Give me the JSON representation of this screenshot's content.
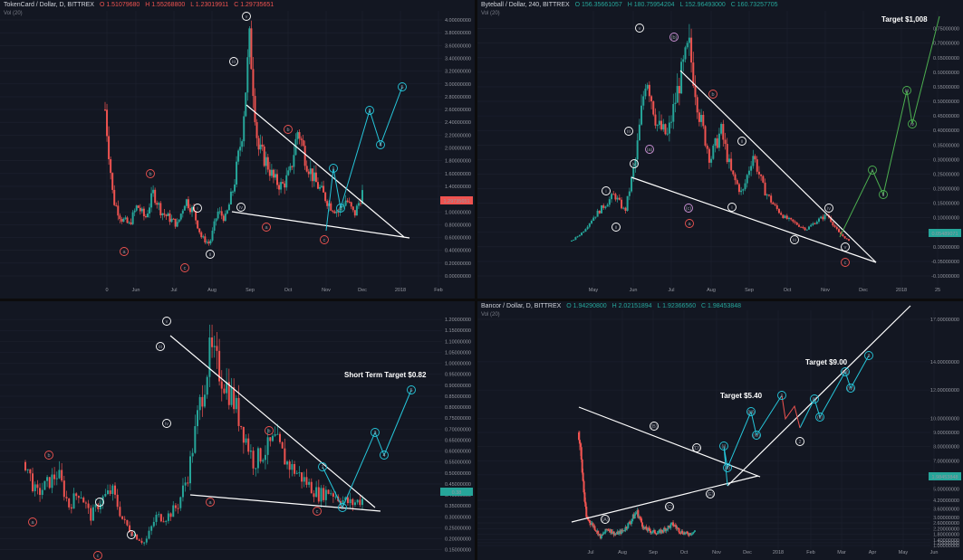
{
  "panels": [
    {
      "id": "tkn",
      "header": {
        "symbol": "TokenCard / Dollar, D, BITTREX",
        "o": "O 1.51079680",
        "h": "H 1.55268800",
        "l": "L 1.23019911",
        "c": "C 1.29735651"
      },
      "sub": "Vol (20)",
      "price_tag": "1.29735651",
      "chart_data": {
        "type": "line",
        "title": "TokenCard / Dollar, D, BITTREX",
        "x_ticks": [
          "0",
          "Jun",
          "Jul",
          "Aug",
          "Sep",
          "Oct",
          "Nov",
          "Dec",
          "2018",
          "Feb"
        ],
        "y_ticks": [
          4.0,
          3.8,
          3.6,
          3.4,
          3.2,
          3.0,
          2.8,
          2.6,
          2.4,
          2.2,
          2.0,
          1.8,
          1.6,
          1.4,
          1.2,
          1.0,
          0.8,
          0.6,
          0.4,
          0.2,
          0.0
        ],
        "ylim": [
          0.0,
          4.0
        ],
        "series": [
          {
            "values": [
              2.6,
              1.2,
              0.9,
              0.8,
              1.1,
              0.9,
              1.3,
              1.0,
              0.9,
              0.8,
              1.2,
              1.0,
              0.6,
              0.5,
              1.0,
              0.9,
              1.4,
              2.2,
              3.7,
              2.0,
              1.8,
              1.5,
              1.4,
              1.6,
              2.3,
              1.8,
              1.5,
              1.3,
              1.1,
              1.0,
              1.2,
              0.95,
              1.3
            ]
          }
        ],
        "wave_labels": [
          "a",
          "b",
          "c",
          "i",
          "ii",
          "iii",
          "iv",
          "v",
          "a",
          "b",
          "c",
          "1",
          "2",
          "3",
          "4",
          "5"
        ]
      }
    },
    {
      "id": "gbyte",
      "header": {
        "symbol": "Byteball / Dollar, 240, BITTREX",
        "o": "O 156.35661057",
        "h": "H 180.75954204",
        "l": "L 152.96493000",
        "c": "C 160.73257705"
      },
      "sub": "Vol (20)",
      "price_tag": "0.05489071",
      "annotation": "Target $1,008",
      "chart_data": {
        "type": "line",
        "title": "Byteball / Dollar, 240, BITTREX",
        "x_ticks": [
          "May",
          "Jun",
          "Jul",
          "Aug",
          "Sep",
          "Oct",
          "Nov",
          "Dec",
          "2018",
          "25"
        ],
        "y_ticks": [
          0.75,
          0.7,
          0.65,
          0.6,
          0.55,
          0.5,
          0.45,
          0.4,
          0.35,
          0.3,
          0.25,
          0.2,
          0.15,
          0.1,
          0.05,
          0.0,
          -0.05,
          -0.1
        ],
        "ylim": [
          -0.1,
          0.78
        ],
        "series": [
          {
            "values": [
              0.02,
              0.05,
              0.1,
              0.14,
              0.18,
              0.12,
              0.3,
              0.6,
              0.42,
              0.38,
              0.55,
              0.69,
              0.45,
              0.3,
              0.4,
              0.25,
              0.18,
              0.32,
              0.2,
              0.14,
              0.1,
              0.08,
              0.06,
              0.09,
              0.11,
              0.05,
              0.02
            ]
          }
        ],
        "wave_labels": [
          "i",
          "ii",
          "iii",
          "iv",
          "v",
          "(a)",
          "(b)",
          "(c)",
          "a",
          "b",
          "c",
          "i",
          "ii",
          "iii",
          "iv",
          "v",
          "i",
          "ii",
          "iii",
          "iv"
        ]
      }
    },
    {
      "id": "eth3",
      "header": {
        "symbol": "",
        "o": "",
        "h": "",
        "l": "",
        "c": ""
      },
      "sub": "",
      "price_tag": "0.38",
      "annotation": "Short Term Target $0.82",
      "chart_data": {
        "type": "line",
        "title": "",
        "x_ticks": [],
        "y_ticks": [
          1.2,
          1.15,
          1.1,
          1.05,
          1.0,
          0.95,
          0.9,
          0.85,
          0.8,
          0.75,
          0.7,
          0.65,
          0.6,
          0.55,
          0.5,
          0.45,
          0.4,
          0.35,
          0.3,
          0.25,
          0.2,
          0.15
        ],
        "ylim": [
          0.12,
          1.25
        ],
        "series": [
          {
            "values": [
              0.55,
              0.4,
              0.45,
              0.5,
              0.35,
              0.42,
              0.3,
              0.38,
              0.42,
              0.28,
              0.22,
              0.18,
              0.3,
              0.3,
              0.35,
              0.5,
              0.8,
              1.05,
              0.95,
              0.85,
              0.7,
              0.55,
              0.6,
              0.65,
              0.55,
              0.5,
              0.45,
              0.4,
              0.42,
              0.38,
              0.36,
              0.38
            ]
          }
        ],
        "wave_labels": [
          "a",
          "b",
          "c",
          "i",
          "ii",
          "iii",
          "iv",
          "v",
          "a",
          "b",
          "c",
          "1",
          "2",
          "3",
          "4",
          "5"
        ]
      }
    },
    {
      "id": "bnt",
      "header": {
        "symbol": "Bancor / Dollar, D, BITTREX",
        "o": "O 1.94290800",
        "h": "H 2.02151894",
        "l": "L 1.92366560",
        "c": "C 1.98453848"
      },
      "sub": "Vol (20)",
      "price_tag": "1.98453848",
      "annotations": [
        "Target $5.40",
        "Target $9.00"
      ],
      "chart_data": {
        "type": "line",
        "title": "Bancor / Dollar, D, BITTREX",
        "x_ticks": [
          "Jul",
          "Aug",
          "Sep",
          "Oct",
          "Nov",
          "Dec",
          "2018",
          "Feb",
          "Mar",
          "Apr",
          "May",
          "Jun"
        ],
        "y_ticks": [
          17.0,
          14.0,
          12.0,
          10.0,
          9.0,
          8.0,
          7.0,
          6.0,
          5.0,
          4.2,
          3.6,
          3.0,
          2.6,
          2.2,
          1.8,
          1.4,
          1.2,
          1.0
        ],
        "ylim": [
          1.0,
          17.0
        ],
        "series": [
          {
            "values": [
              9.0,
              3.0,
              2.4,
              1.6,
              2.2,
              1.8,
              2.0,
              2.6,
              3.4,
              2.2,
              2.0,
              1.9,
              2.2,
              2.5,
              2.0,
              1.8,
              2.0
            ]
          }
        ],
        "wave_labels": [
          "(A)",
          "(B)",
          "(C)",
          "(D)",
          "(E)",
          "(i)",
          "(ii)",
          "(iii)",
          "(iv)",
          "1",
          "2",
          "(i)",
          "(ii)",
          "(iii)",
          "(iv)",
          "3"
        ]
      }
    }
  ]
}
